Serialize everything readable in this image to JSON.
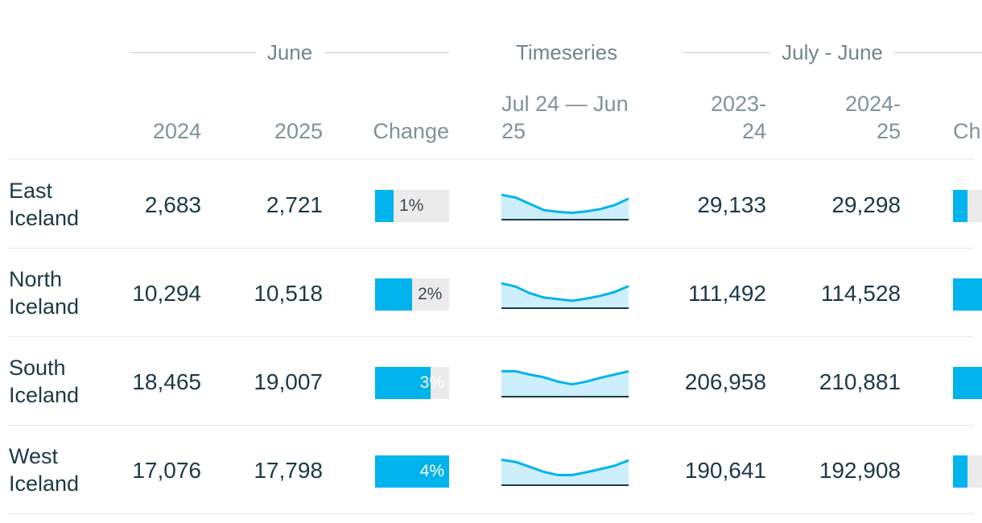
{
  "header": {
    "groups": {
      "june": "June",
      "timeseries": "Timeseries",
      "july_june": "July - June"
    },
    "columns": {
      "y2024": "2024",
      "y2025": "2025",
      "change": "Change",
      "timeseries_line1": "Jul 24 — Jun",
      "timeseries_line2": "25",
      "p1_line1": "2023-",
      "p1_line2": "24",
      "p2_line1": "2024-",
      "p2_line2": "25",
      "change2_partial": "Ch"
    }
  },
  "colors": {
    "accent": "#00b3ec",
    "spark_fill": "#cdeffb",
    "bar_track": "#ebebeb"
  },
  "rows": [
    {
      "region_line1": "East",
      "region_line2": "Iceland",
      "june_2024": "2,683",
      "june_2025": "2,721",
      "change_label": "1%",
      "change_pct": 1,
      "ytd_2023_24": "29,133",
      "ytd_2024_25": "29,298",
      "ytd_change_pct": 1,
      "spark": [
        0.88,
        0.78,
        0.55,
        0.32,
        0.26,
        0.22,
        0.27,
        0.36,
        0.5,
        0.74
      ]
    },
    {
      "region_line1": "North",
      "region_line2": "Iceland",
      "june_2024": "10,294",
      "june_2025": "10,518",
      "change_label": "2%",
      "change_pct": 2,
      "ytd_2023_24": "111,492",
      "ytd_2024_25": "114,528",
      "ytd_change_pct": 3,
      "spark": [
        0.88,
        0.76,
        0.52,
        0.36,
        0.3,
        0.24,
        0.32,
        0.42,
        0.56,
        0.78
      ]
    },
    {
      "region_line1": "South",
      "region_line2": "Iceland",
      "june_2024": "18,465",
      "june_2025": "19,007",
      "change_label": "3%",
      "change_pct": 3,
      "ytd_2023_24": "206,958",
      "ytd_2024_25": "210,881",
      "ytd_change_pct": 2,
      "spark": [
        0.9,
        0.9,
        0.78,
        0.68,
        0.52,
        0.42,
        0.52,
        0.66,
        0.78,
        0.9
      ]
    },
    {
      "region_line1": "West",
      "region_line2": "Iceland",
      "june_2024": "17,076",
      "june_2025": "17,798",
      "change_label": "4%",
      "change_pct": 4,
      "ytd_2023_24": "190,641",
      "ytd_2024_25": "192,908",
      "ytd_change_pct": 1,
      "spark": [
        0.9,
        0.82,
        0.64,
        0.46,
        0.34,
        0.34,
        0.44,
        0.56,
        0.68,
        0.88
      ]
    }
  ]
}
